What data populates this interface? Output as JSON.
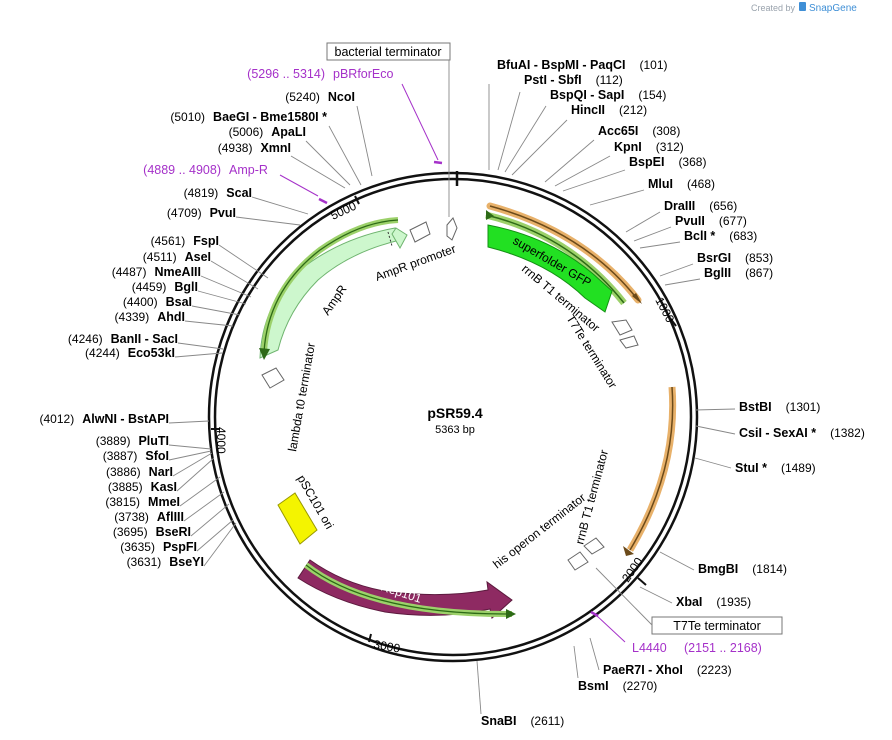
{
  "credit": {
    "text": "Created by",
    "brand": "SnapGene"
  },
  "plasmid": {
    "name": "pSR59.4",
    "length": "5363 bp"
  },
  "ticks": [
    "1000",
    "2000",
    "3000",
    "4000",
    "5000"
  ],
  "boxed_labels": {
    "top": "bacterial terminator",
    "bottom": "T7Te terminator"
  },
  "primers": [
    {
      "range": "(5296 .. 5314)",
      "name": "pBRforEco"
    },
    {
      "range": "(4889 .. 4908)",
      "name": "Amp-R"
    },
    {
      "range": "(2151 .. 2168)",
      "name": "L4440"
    }
  ],
  "features": {
    "sfgfp": "superfolder GFP",
    "rrnb_top": "rrnB T1 terminator",
    "t7te": "T7Te terminator",
    "rrnb_right": "rrnB T1 terminator",
    "his": "his operon terminator",
    "rep": "Rep101",
    "psc": "pSC101 ori",
    "lambda": "lambda t0 terminator",
    "ampr": "AmpR",
    "ampr_prom": "AmpR promoter"
  },
  "enzymes_right": [
    {
      "name": "BfuAI  -  BspMI  -  PaqCI",
      "pos": "(101)"
    },
    {
      "name": "PstI  -  SbfI",
      "pos": "(112)"
    },
    {
      "name": "BspQI  -  SapI",
      "pos": "(154)"
    },
    {
      "name": "HincII",
      "pos": "(212)"
    },
    {
      "name": "Acc65I",
      "pos": "(308)"
    },
    {
      "name": "KpnI",
      "pos": "(312)"
    },
    {
      "name": "BspEI",
      "pos": "(368)"
    },
    {
      "name": "MluI",
      "pos": "(468)"
    },
    {
      "name": "DraIII",
      "pos": "(656)"
    },
    {
      "name": "PvuII",
      "pos": "(677)"
    },
    {
      "name": "BclI *",
      "pos": "(683)"
    },
    {
      "name": "BsrGI",
      "pos": "(853)"
    },
    {
      "name": "BglII",
      "pos": "(867)"
    },
    {
      "name": "BstBI",
      "pos": "(1301)"
    },
    {
      "name": "CsiI  -  SexAI *",
      "pos": "(1382)"
    },
    {
      "name": "StuI *",
      "pos": "(1489)"
    },
    {
      "name": "BmgBI",
      "pos": "(1814)"
    },
    {
      "name": "XbaI",
      "pos": "(1935)"
    },
    {
      "name": "PaeR7I  -  XhoI",
      "pos": "(2223)"
    },
    {
      "name": "BsmI",
      "pos": "(2270)"
    },
    {
      "name": "SnaBI",
      "pos": "(2611)"
    }
  ],
  "enzymes_left": [
    {
      "name": "NcoI",
      "pos": "(5240)"
    },
    {
      "name": "BaeGI  -  Bme1580I *",
      "pos": "(5010)"
    },
    {
      "name": "ApaLI",
      "pos": "(5006)"
    },
    {
      "name": "XmnI",
      "pos": "(4938)"
    },
    {
      "name": "ScaI",
      "pos": "(4819)"
    },
    {
      "name": "PvuI",
      "pos": "(4709)"
    },
    {
      "name": "FspI",
      "pos": "(4561)"
    },
    {
      "name": "AseI",
      "pos": "(4511)"
    },
    {
      "name": "NmeAIII",
      "pos": "(4487)"
    },
    {
      "name": "BglI",
      "pos": "(4459)"
    },
    {
      "name": "BsaI",
      "pos": "(4400)"
    },
    {
      "name": "AhdI",
      "pos": "(4339)"
    },
    {
      "name": "BanII  -  SacI",
      "pos": "(4246)"
    },
    {
      "name": "Eco53kI",
      "pos": "(4244)"
    },
    {
      "name": "AlwNI  -  BstAPI",
      "pos": "(4012)"
    },
    {
      "name": "PluTI",
      "pos": "(3889)"
    },
    {
      "name": "SfoI",
      "pos": "(3887)"
    },
    {
      "name": "NarI",
      "pos": "(3886)"
    },
    {
      "name": "KasI",
      "pos": "(3885)"
    },
    {
      "name": "MmeI",
      "pos": "(3815)"
    },
    {
      "name": "AflIII",
      "pos": "(3738)"
    },
    {
      "name": "BseRI",
      "pos": "(3695)"
    },
    {
      "name": "PspFI",
      "pos": "(3635)"
    },
    {
      "name": "BseYI",
      "pos": "(3631)"
    }
  ],
  "colors": {
    "backbone": "#111111",
    "sfgfp": "#22e022",
    "rep": "#8e2a62",
    "ampr": "#cdf7cd",
    "psc": "#f4f400",
    "orange_arrow": "#e8b16a",
    "green_arrow": "#9cd16a",
    "primer": "#a531c9"
  }
}
